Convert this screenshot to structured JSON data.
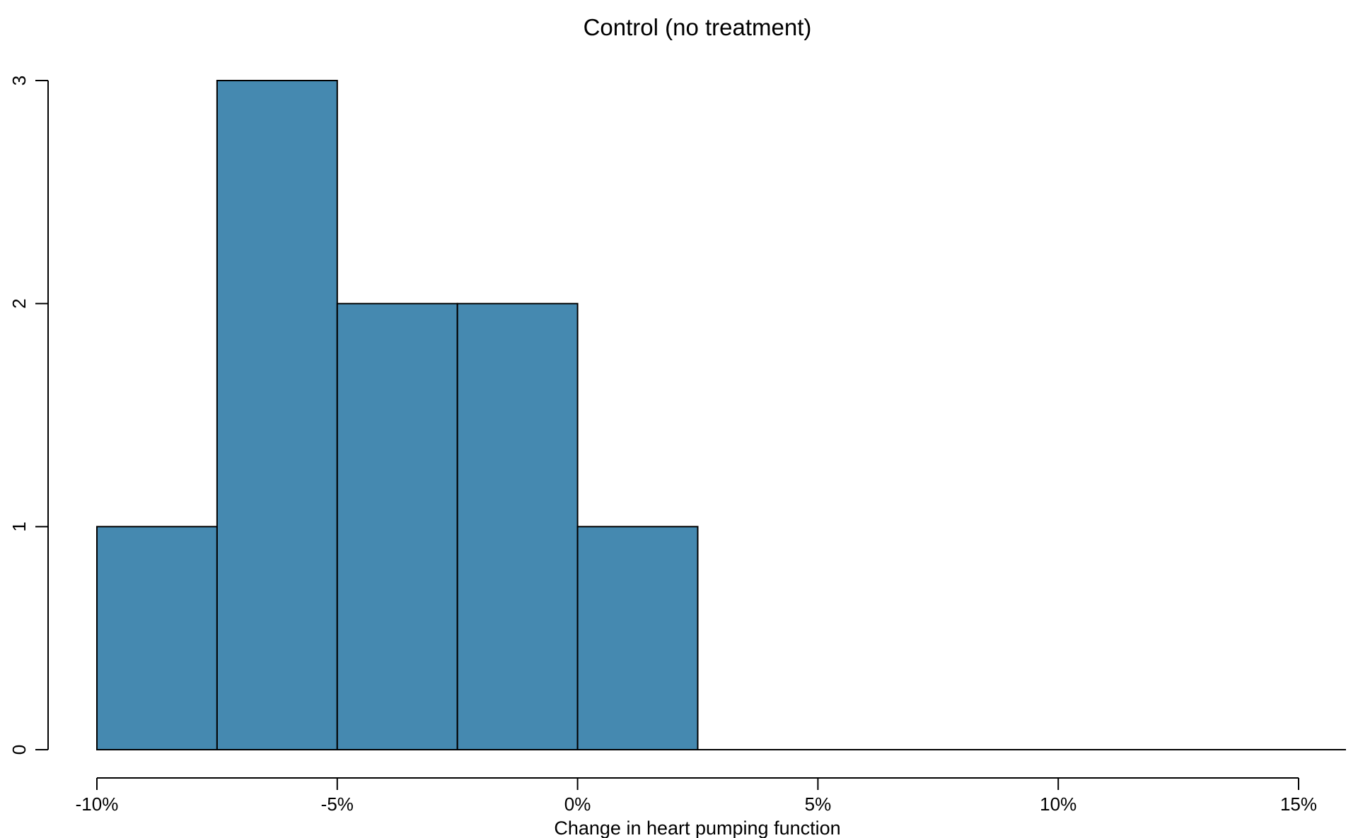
{
  "chart_data": {
    "type": "bar",
    "title": "Control (no treatment)",
    "xlabel": "Change in heart pumping function",
    "ylabel": "",
    "bar_color": "#4589b0",
    "bin_width": 2.5,
    "bins": [
      {
        "start": -10,
        "end": -7.5,
        "count": 1
      },
      {
        "start": -7.5,
        "end": -5,
        "count": 3
      },
      {
        "start": -5,
        "end": -2.5,
        "count": 2
      },
      {
        "start": -2.5,
        "end": 0,
        "count": 2
      },
      {
        "start": 0,
        "end": 2.5,
        "count": 1
      },
      {
        "start": 2.5,
        "end": 5,
        "count": 0
      },
      {
        "start": 5,
        "end": 7.5,
        "count": 0
      },
      {
        "start": 7.5,
        "end": 10,
        "count": 0
      },
      {
        "start": 10,
        "end": 12.5,
        "count": 0
      },
      {
        "start": 12.5,
        "end": 15,
        "count": 0
      }
    ],
    "xlim": [
      -10,
      15
    ],
    "ylim": [
      0,
      3
    ],
    "x_ticks": [
      {
        "value": -10,
        "label": "-10%"
      },
      {
        "value": -5,
        "label": "-5%"
      },
      {
        "value": 0,
        "label": "0%"
      },
      {
        "value": 5,
        "label": "5%"
      },
      {
        "value": 10,
        "label": "10%"
      },
      {
        "value": 15,
        "label": "15%"
      }
    ],
    "y_ticks": [
      {
        "value": 0,
        "label": "0"
      },
      {
        "value": 1,
        "label": "1"
      },
      {
        "value": 2,
        "label": "2"
      },
      {
        "value": 3,
        "label": "3"
      }
    ],
    "grid": false,
    "legend": "none"
  }
}
